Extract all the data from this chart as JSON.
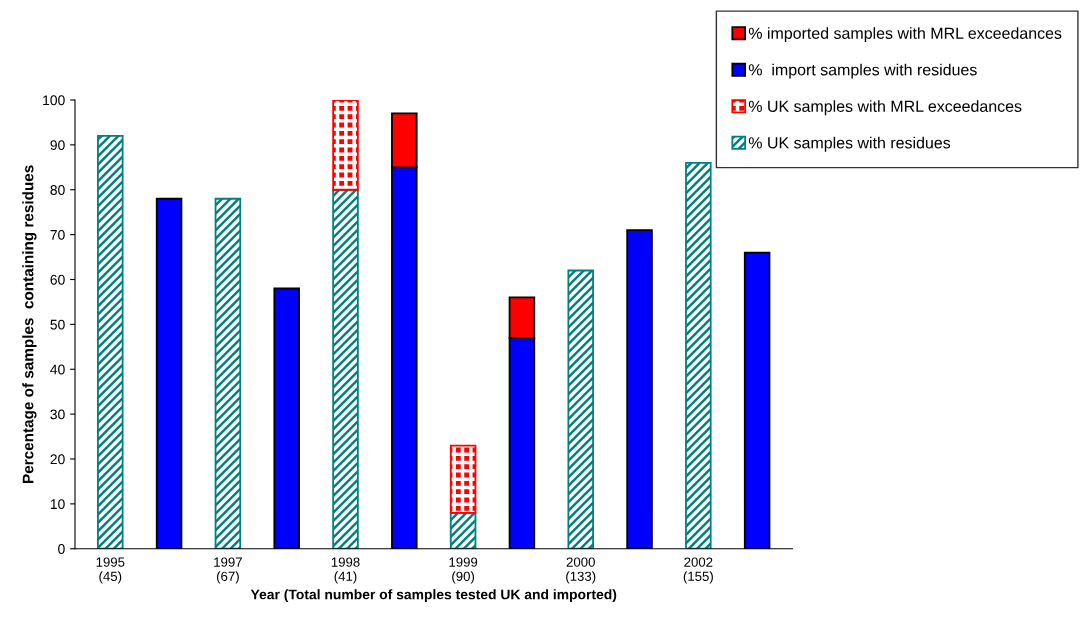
{
  "chart_data": {
    "type": "bar",
    "stacked": true,
    "xlabel": "Year (Total number of samples tested UK and imported)",
    "ylabel": "Percentage of samples  containing residues",
    "categories": [
      "1995\n(45)",
      null,
      "1997\n(67)",
      null,
      "1998\n(41)",
      null,
      "1999\n(90)",
      null,
      "2000\n(133)",
      null,
      "2002\n(155)",
      null
    ],
    "series": [
      {
        "name": "% UK samples with residues",
        "color": "#008080",
        "values": [
          92,
          null,
          78,
          null,
          80,
          null,
          8,
          null,
          62,
          null,
          86,
          null
        ]
      },
      {
        "name": "% UK samples with MRL exceedances",
        "color": "#ff0000",
        "values": [
          null,
          null,
          null,
          null,
          20,
          null,
          15,
          null,
          null,
          null,
          null,
          null
        ]
      },
      {
        "name": "%  import samples with residues",
        "color": "#0000ff",
        "values": [
          null,
          78,
          null,
          58,
          null,
          85,
          null,
          47,
          null,
          71,
          null,
          66
        ]
      },
      {
        "name": "% imported samples with MRL exceedances",
        "color": "#ff0000",
        "values": [
          null,
          null,
          null,
          null,
          null,
          12,
          null,
          9,
          null,
          null,
          null,
          null
        ]
      }
    ],
    "ylim": [
      0,
      100
    ],
    "yticks": [
      0,
      10,
      20,
      30,
      40,
      50,
      60,
      70,
      80,
      90,
      100
    ],
    "grid": false,
    "legend": "top right"
  }
}
